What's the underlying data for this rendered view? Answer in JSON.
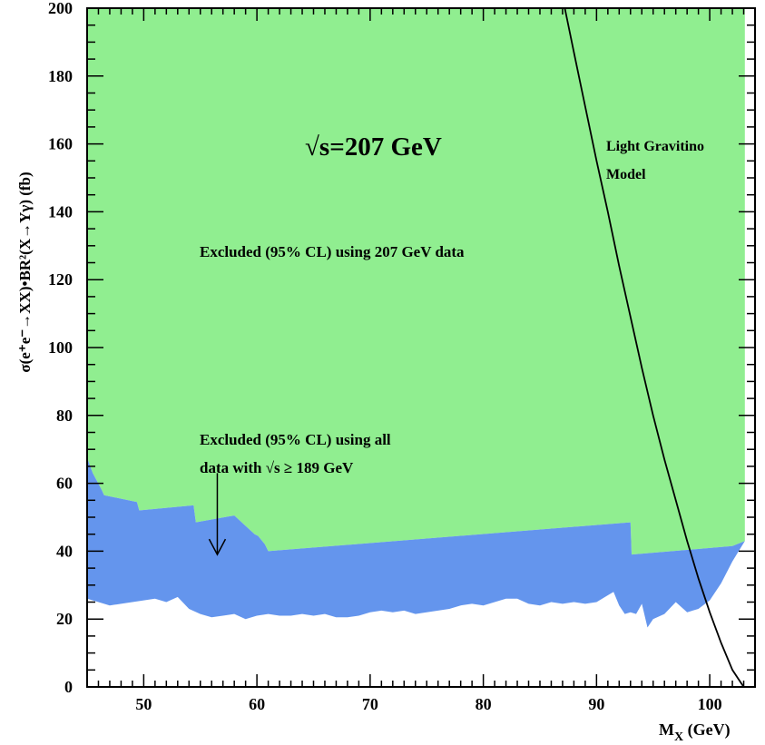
{
  "chart_data": {
    "type": "area",
    "xlim": [
      45,
      104
    ],
    "ylim": [
      0,
      200
    ],
    "x_ticks": [
      50,
      60,
      70,
      80,
      90,
      100
    ],
    "x_minor_step": 1,
    "y_ticks": [
      0,
      20,
      40,
      60,
      80,
      100,
      120,
      140,
      160,
      180,
      200
    ],
    "y_minor_step": 5,
    "xlabel_main": "M",
    "xlabel_sub": "X",
    "xlabel_unit": " (GeV)",
    "ylabel": "σ(e⁺e⁻→XX)•BR²(X→Yγ) (fb)",
    "regions": [
      {
        "label": "Excluded (95% CL) using 207 GeV data",
        "color": "#90ee90",
        "x": [
          45,
          45.5,
          46.3,
          46.5,
          49.4,
          49.6,
          54.4,
          54.6,
          58,
          59.8,
          60.1,
          60.7,
          61,
          93,
          93.1,
          102,
          103.1,
          103.1
        ],
        "y": [
          67.5,
          63,
          58,
          56.5,
          54.5,
          52,
          53.5,
          48.5,
          50.5,
          45,
          44.5,
          42,
          40,
          48.5,
          39,
          41.5,
          43,
          200
        ],
        "top": 200
      },
      {
        "label": "Excluded (95% CL) using all data with √s ≥ 189 GeV",
        "color": "#6495ed",
        "upper_x": [
          45,
          45.5,
          46.3,
          46.5,
          49.4,
          49.6,
          54.4,
          54.6,
          58,
          59.8,
          60.1,
          60.7,
          61,
          93,
          93.1,
          102,
          103.1
        ],
        "upper_y": [
          67.5,
          63,
          58,
          56.5,
          54.5,
          52,
          53.5,
          48.5,
          50.5,
          45,
          44.5,
          42,
          40,
          48.5,
          39,
          41.5,
          43
        ],
        "lower_x": [
          45,
          46,
          47,
          48,
          49,
          50,
          51,
          52,
          53,
          54,
          55,
          56,
          57,
          58,
          59,
          60,
          61,
          62,
          63,
          64,
          65,
          66,
          67,
          68,
          69,
          70,
          71,
          72,
          73,
          74,
          75,
          76,
          77,
          78,
          79,
          80,
          81,
          82,
          83,
          84,
          85,
          86,
          87,
          88,
          89,
          90,
          91,
          91.5,
          92,
          92.5,
          93,
          93.5,
          94,
          94.5,
          95,
          96,
          97,
          98,
          99,
          100,
          101,
          102,
          103.1
        ],
        "lower_y": [
          26,
          25,
          24,
          24.5,
          25,
          25.5,
          26,
          25,
          26.5,
          23,
          21.5,
          20.5,
          21,
          21.5,
          20,
          21,
          21.5,
          21,
          21,
          21.5,
          21,
          21.5,
          20.5,
          20.5,
          21,
          22,
          22.5,
          22,
          22.5,
          21.5,
          22,
          22.5,
          23,
          24,
          24.5,
          24,
          25,
          26,
          26,
          24.5,
          24,
          25,
          24.5,
          25,
          24.5,
          25,
          27,
          28,
          24,
          21.5,
          22,
          21.5,
          24.5,
          17.5,
          20,
          21.5,
          25,
          22,
          23,
          25.5,
          30.5,
          37,
          43
        ]
      }
    ],
    "series": [
      {
        "name": "Light Gravitino Model",
        "color": "#000000",
        "x": [
          87.2,
          88,
          89,
          90,
          91,
          92,
          93,
          94,
          95,
          96,
          97,
          98,
          99,
          100,
          101,
          102,
          103
        ],
        "y": [
          200,
          187,
          171,
          155,
          140,
          124,
          109,
          94,
          80,
          67,
          55,
          43,
          32,
          22,
          13,
          5,
          0
        ]
      }
    ],
    "arrow": {
      "from": [
        56.5,
        63
      ],
      "to": [
        56.5,
        39
      ]
    },
    "annotations": {
      "energy": "√s=207 GeV",
      "excluded_207": "Excluded (95% CL) using 207 GeV data",
      "excluded_all_line1": "Excluded (95% CL) using all",
      "excluded_all_line2": "data with √s ≥ 189 GeV",
      "gravitino_line1": "Light Gravitino",
      "gravitino_line2": "Model"
    },
    "grid": false
  }
}
